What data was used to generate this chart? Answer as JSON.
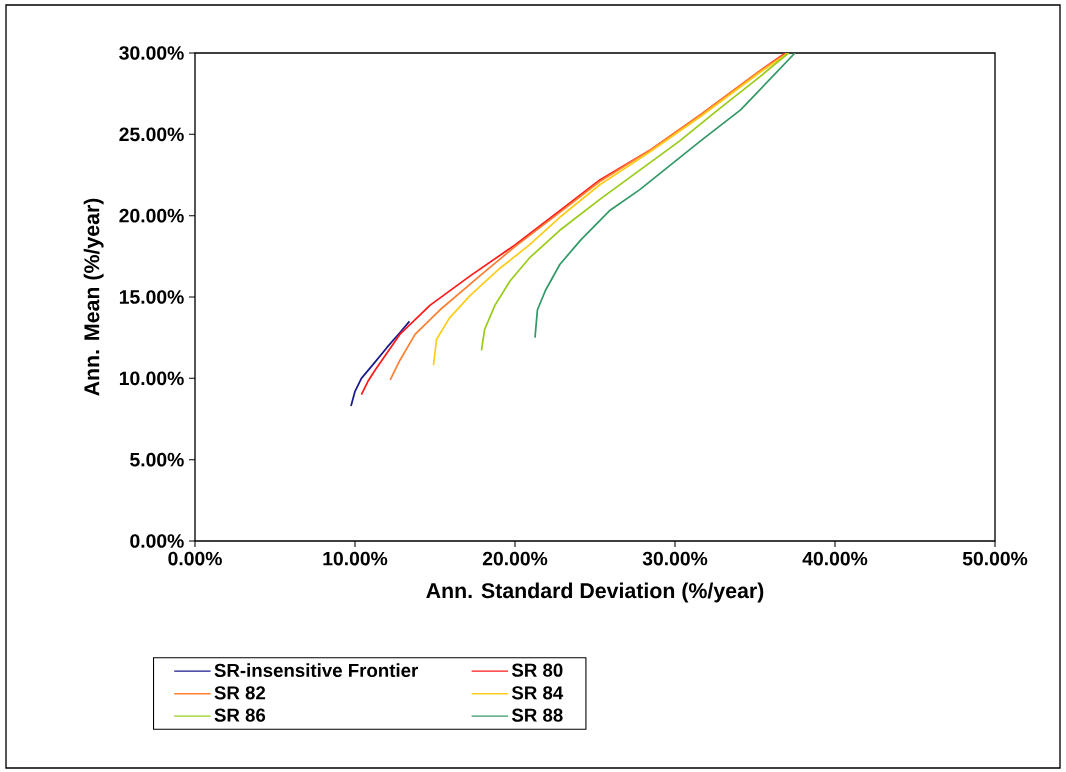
{
  "chart_data": {
    "type": "line",
    "xlabel": "Ann. Standard Deviation (%/year)",
    "ylabel": "Ann. Mean (%/year)",
    "xlim": [
      0,
      50
    ],
    "ylim": [
      0,
      30
    ],
    "xticks": [
      {
        "value": 0,
        "label": "0.00%"
      },
      {
        "value": 10,
        "label": "10.00%"
      },
      {
        "value": 20,
        "label": "20.00%"
      },
      {
        "value": 30,
        "label": "30.00%"
      },
      {
        "value": 40,
        "label": "40.00%"
      },
      {
        "value": 50,
        "label": "50.00%"
      }
    ],
    "yticks": [
      {
        "value": 0,
        "label": "0.00%"
      },
      {
        "value": 5,
        "label": "5.00%"
      },
      {
        "value": 10,
        "label": "10.00%"
      },
      {
        "value": 15,
        "label": "15.00%"
      },
      {
        "value": 20,
        "label": "20.00%"
      },
      {
        "value": 25,
        "label": "25.00%"
      },
      {
        "value": 30,
        "label": "30.00%"
      }
    ],
    "grid": false,
    "legend": "bottom",
    "marker": "none",
    "line_style": "solid",
    "series": [
      {
        "name": "SR-insensitive Frontier",
        "color": "#1a1a8c",
        "x": [
          9.75,
          10.0,
          10.4,
          11.25,
          12.0,
          12.8,
          13.4
        ],
        "values": [
          8.3,
          9.2,
          10.0,
          11.0,
          11.9,
          12.8,
          13.5
        ]
      },
      {
        "name": "SR 80",
        "color": "#ff1a1a",
        "x": [
          10.4,
          10.8,
          11.25,
          12.8,
          14.7,
          17.2,
          20.0,
          22.8,
          25.3,
          28.4,
          31.6,
          35.3,
          36.9
        ],
        "values": [
          9.0,
          9.8,
          10.5,
          12.7,
          14.5,
          16.3,
          18.2,
          20.3,
          22.2,
          24.0,
          26.2,
          28.9,
          30.0
        ]
      },
      {
        "name": "SR 82",
        "color": "#ff7f33",
        "x": [
          12.2,
          12.8,
          13.75,
          15.3,
          17.8,
          20.0,
          22.8,
          25.3,
          28.4,
          31.6,
          35.3,
          37.0
        ],
        "values": [
          9.9,
          11.1,
          12.7,
          14.2,
          16.3,
          18.1,
          20.2,
          22.1,
          24.0,
          26.2,
          28.9,
          30.0
        ]
      },
      {
        "name": "SR 84",
        "color": "#ffcc1a",
        "x": [
          14.9,
          15.1,
          15.9,
          17.2,
          19.1,
          20.9,
          22.8,
          25.3,
          28.4,
          31.6,
          35.3,
          37.1
        ],
        "values": [
          10.8,
          12.4,
          13.7,
          15.1,
          16.8,
          18.2,
          19.9,
          21.9,
          23.9,
          26.1,
          28.8,
          30.0
        ]
      },
      {
        "name": "SR 86",
        "color": "#99cc1a",
        "x": [
          17.9,
          18.1,
          18.75,
          19.7,
          20.9,
          22.8,
          25.3,
          27.8,
          30.3,
          32.8,
          35.0,
          37.1
        ],
        "values": [
          11.7,
          13.0,
          14.5,
          16.0,
          17.4,
          19.1,
          21.0,
          22.8,
          24.6,
          26.6,
          28.3,
          30.0
        ]
      },
      {
        "name": "SR 88",
        "color": "#339966",
        "x": [
          21.25,
          21.4,
          21.9,
          22.8,
          24.1,
          25.9,
          27.8,
          29.7,
          31.6,
          34.1,
          37.5
        ],
        "values": [
          12.5,
          14.2,
          15.4,
          17.0,
          18.5,
          20.3,
          21.6,
          23.1,
          24.6,
          26.5,
          30.0
        ]
      }
    ]
  }
}
